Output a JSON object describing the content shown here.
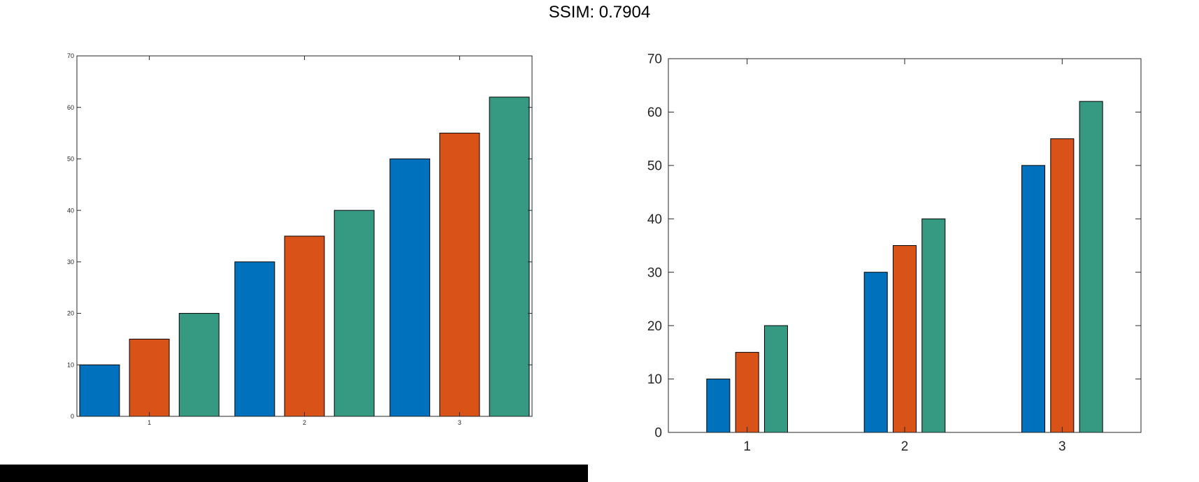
{
  "title": "SSIM: 0.7904",
  "colors": {
    "series1": "#0072bd",
    "series2": "#d95319",
    "series3": "#359a81",
    "axis": "#262626",
    "bar_edge": "#000000",
    "bottom_bar": "#000000"
  },
  "chart_data": [
    {
      "type": "bar",
      "categories": [
        "1",
        "2",
        "3"
      ],
      "series": [
        {
          "values": [
            10,
            30,
            50
          ],
          "color": "#0072bd"
        },
        {
          "values": [
            15,
            35,
            55
          ],
          "color": "#d95319"
        },
        {
          "values": [
            20,
            40,
            62
          ],
          "color": "#359a81"
        }
      ],
      "bar_width": 0.8,
      "ylim": [
        0,
        70
      ],
      "yticks": [
        0,
        10,
        20,
        30,
        40,
        50,
        60,
        70
      ],
      "xlabel": "",
      "ylabel": "",
      "grid": false,
      "legend": "none"
    },
    {
      "type": "bar",
      "categories": [
        "1",
        "2",
        "3"
      ],
      "series": [
        {
          "values": [
            10,
            30,
            50
          ],
          "color": "#0072bd"
        },
        {
          "values": [
            15,
            35,
            55
          ],
          "color": "#d95319"
        },
        {
          "values": [
            20,
            40,
            62
          ],
          "color": "#359a81"
        }
      ],
      "bar_width": 0.8,
      "ylim": [
        0,
        70
      ],
      "yticks": [
        0,
        10,
        20,
        30,
        40,
        50,
        60,
        70
      ],
      "xlabel": "",
      "ylabel": "",
      "grid": false,
      "legend": "none"
    }
  ]
}
